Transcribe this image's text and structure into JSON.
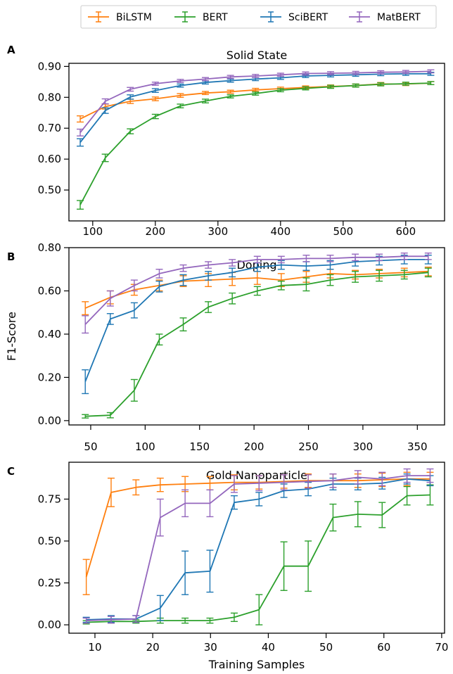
{
  "legend": [
    {
      "name": "BiLSTM",
      "color": "#ff7f0e"
    },
    {
      "name": "BERT",
      "color": "#2ca02c"
    },
    {
      "name": "SciBERT",
      "color": "#1f77b4"
    },
    {
      "name": "MatBERT",
      "color": "#9467bd"
    }
  ],
  "chart_data": [
    {
      "type": "line",
      "letter": "A",
      "title": "Solid State",
      "ylabel": "",
      "xlabel": "",
      "xlim": [
        62,
        662
      ],
      "ylim": [
        0.4,
        0.91
      ],
      "xticks": [
        100,
        200,
        300,
        400,
        500,
        600
      ],
      "yticks": [
        0.5,
        0.6,
        0.7,
        0.8,
        0.9
      ],
      "ytick_labels": [
        "0.50",
        "0.60",
        "0.70",
        "0.80",
        "0.90"
      ],
      "x": [
        80,
        120,
        160,
        200,
        240,
        280,
        320,
        360,
        400,
        440,
        480,
        520,
        560,
        600,
        640
      ],
      "series": [
        {
          "name": "BiLSTM",
          "color": "#ff7f0e",
          "values": [
            0.73,
            0.77,
            0.787,
            0.795,
            0.806,
            0.814,
            0.818,
            0.824,
            0.828,
            0.832,
            0.835,
            0.838,
            0.843,
            0.843,
            0.846
          ],
          "errors": [
            0.01,
            0.008,
            0.007,
            0.006,
            0.006,
            0.005,
            0.005,
            0.005,
            0.005,
            0.005,
            0.005,
            0.005,
            0.005,
            0.005,
            0.005
          ]
        },
        {
          "name": "BERT",
          "color": "#2ca02c",
          "values": [
            0.452,
            0.604,
            0.69,
            0.738,
            0.772,
            0.788,
            0.803,
            0.812,
            0.823,
            0.829,
            0.834,
            0.838,
            0.842,
            0.844,
            0.846
          ],
          "errors": [
            0.014,
            0.012,
            0.008,
            0.007,
            0.006,
            0.006,
            0.005,
            0.005,
            0.005,
            0.005,
            0.005,
            0.005,
            0.005,
            0.005,
            0.005
          ]
        },
        {
          "name": "SciBERT",
          "color": "#1f77b4",
          "values": [
            0.654,
            0.757,
            0.801,
            0.822,
            0.838,
            0.848,
            0.854,
            0.859,
            0.863,
            0.869,
            0.871,
            0.873,
            0.875,
            0.876,
            0.876
          ],
          "errors": [
            0.012,
            0.009,
            0.007,
            0.006,
            0.005,
            0.005,
            0.005,
            0.005,
            0.005,
            0.005,
            0.005,
            0.005,
            0.005,
            0.005,
            0.005
          ]
        },
        {
          "name": "MatBERT",
          "color": "#9467bd",
          "values": [
            0.686,
            0.787,
            0.826,
            0.844,
            0.853,
            0.859,
            0.866,
            0.869,
            0.873,
            0.877,
            0.878,
            0.879,
            0.881,
            0.882,
            0.884
          ],
          "errors": [
            0.011,
            0.008,
            0.006,
            0.005,
            0.005,
            0.005,
            0.005,
            0.005,
            0.005,
            0.005,
            0.005,
            0.005,
            0.005,
            0.005,
            0.005
          ]
        }
      ]
    },
    {
      "type": "line",
      "letter": "B",
      "title": "Doping",
      "ylabel": "F1-Score",
      "xlabel": "",
      "xlim": [
        30,
        375
      ],
      "ylim": [
        -0.02,
        0.8
      ],
      "xticks": [
        50,
        100,
        150,
        200,
        250,
        300,
        350
      ],
      "yticks": [
        0.0,
        0.2,
        0.4,
        0.6,
        0.8
      ],
      "ytick_labels": [
        "0.00",
        "0.20",
        "0.40",
        "0.60",
        "0.80"
      ],
      "x": [
        45,
        68,
        90,
        113,
        135,
        158,
        180,
        203,
        225,
        248,
        270,
        293,
        315,
        338,
        360
      ],
      "series": [
        {
          "name": "BiLSTM",
          "color": "#ff7f0e",
          "values": [
            0.52,
            0.57,
            0.605,
            0.625,
            0.645,
            0.65,
            0.655,
            0.66,
            0.65,
            0.665,
            0.68,
            0.675,
            0.68,
            0.685,
            0.69
          ],
          "errors": [
            0.03,
            0.03,
            0.025,
            0.025,
            0.025,
            0.03,
            0.03,
            0.03,
            0.03,
            0.025,
            0.02,
            0.02,
            0.02,
            0.02,
            0.02
          ]
        },
        {
          "name": "BERT",
          "color": "#2ca02c",
          "values": [
            0.02,
            0.025,
            0.14,
            0.375,
            0.445,
            0.525,
            0.565,
            0.6,
            0.625,
            0.63,
            0.65,
            0.665,
            0.67,
            0.675,
            0.685
          ],
          "errors": [
            0.008,
            0.012,
            0.05,
            0.025,
            0.03,
            0.025,
            0.025,
            0.02,
            0.02,
            0.03,
            0.025,
            0.025,
            0.025,
            0.02,
            0.02
          ]
        },
        {
          "name": "SciBERT",
          "color": "#1f77b4",
          "values": [
            0.18,
            0.47,
            0.51,
            0.62,
            0.65,
            0.67,
            0.685,
            0.71,
            0.72,
            0.715,
            0.72,
            0.735,
            0.74,
            0.745,
            0.745
          ],
          "errors": [
            0.055,
            0.025,
            0.035,
            0.025,
            0.025,
            0.02,
            0.02,
            0.02,
            0.02,
            0.02,
            0.02,
            0.02,
            0.02,
            0.02,
            0.02
          ]
        },
        {
          "name": "MatBERT",
          "color": "#9467bd",
          "values": [
            0.445,
            0.565,
            0.625,
            0.68,
            0.705,
            0.72,
            0.73,
            0.745,
            0.745,
            0.75,
            0.75,
            0.755,
            0.755,
            0.76,
            0.76
          ],
          "errors": [
            0.04,
            0.035,
            0.025,
            0.02,
            0.015,
            0.015,
            0.015,
            0.015,
            0.015,
            0.015,
            0.015,
            0.015,
            0.015,
            0.015,
            0.015
          ]
        }
      ]
    },
    {
      "type": "line",
      "letter": "C",
      "title": "Gold Nanoparticle",
      "ylabel": "",
      "xlabel": "Training Samples",
      "xlim": [
        5.5,
        70.5
      ],
      "ylim": [
        -0.05,
        0.97
      ],
      "xticks": [
        10,
        20,
        30,
        40,
        50,
        60,
        70
      ],
      "yticks": [
        0.0,
        0.25,
        0.5,
        0.75
      ],
      "ytick_labels": [
        "0.00",
        "0.25",
        "0.50",
        "0.75"
      ],
      "x": [
        8.5,
        12.8,
        17.1,
        21.3,
        25.6,
        29.9,
        34.1,
        38.4,
        42.7,
        46.9,
        51.2,
        55.5,
        59.7,
        64.0,
        68.0
      ],
      "series": [
        {
          "name": "BiLSTM",
          "color": "#ff7f0e",
          "values": [
            0.285,
            0.79,
            0.82,
            0.835,
            0.84,
            0.845,
            0.85,
            0.85,
            0.855,
            0.86,
            0.86,
            0.86,
            0.865,
            0.87,
            0.87
          ],
          "errors": [
            0.105,
            0.085,
            0.045,
            0.04,
            0.045,
            0.04,
            0.045,
            0.04,
            0.04,
            0.04,
            0.04,
            0.04,
            0.04,
            0.04,
            0.04
          ]
        },
        {
          "name": "BERT",
          "color": "#2ca02c",
          "values": [
            0.015,
            0.02,
            0.02,
            0.025,
            0.025,
            0.025,
            0.045,
            0.09,
            0.35,
            0.35,
            0.64,
            0.66,
            0.655,
            0.77,
            0.775
          ],
          "errors": [
            0.01,
            0.01,
            0.01,
            0.015,
            0.015,
            0.015,
            0.025,
            0.09,
            0.145,
            0.15,
            0.08,
            0.075,
            0.075,
            0.055,
            0.06
          ]
        },
        {
          "name": "SciBERT",
          "color": "#1f77b4",
          "values": [
            0.03,
            0.035,
            0.035,
            0.1,
            0.31,
            0.32,
            0.73,
            0.75,
            0.8,
            0.81,
            0.84,
            0.84,
            0.845,
            0.87,
            0.86
          ]
        },
        {
          "name": "MatBERT",
          "color": "#9467bd",
          "values": [
            0.025,
            0.03,
            0.035,
            0.64,
            0.725,
            0.725,
            0.84,
            0.845,
            0.85,
            0.855,
            0.86,
            0.88,
            0.87,
            0.89,
            0.89
          ],
          "errors": [
            0.015,
            0.02,
            0.02,
            0.11,
            0.08,
            0.08,
            0.05,
            0.045,
            0.045,
            0.04,
            0.04,
            0.04,
            0.04,
            0.04,
            0.04
          ]
        }
      ]
    }
  ]
}
